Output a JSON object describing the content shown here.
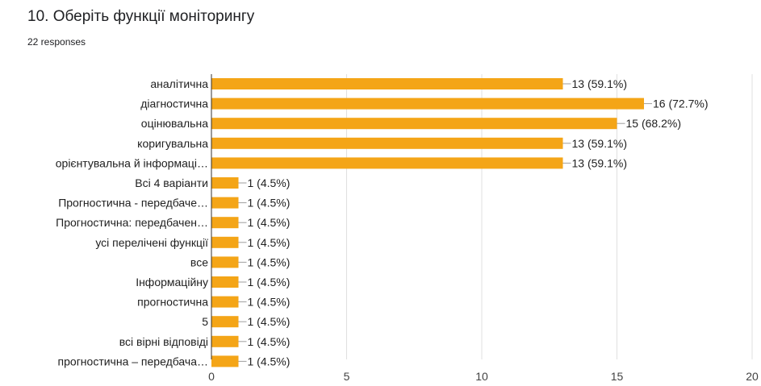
{
  "question": {
    "title": "10. Оберіть  функції моніторингу",
    "responses": "22 responses"
  },
  "colors": {
    "bar": "#f4a517",
    "grid": "#e0e0e0",
    "axis": "#333333",
    "text": "#212121"
  },
  "chart_data": {
    "type": "bar",
    "orientation": "horizontal",
    "categories": [
      "аналітична",
      "діагностична",
      "оцінювальна",
      "коригувальна",
      "орієнтувальна й інформаці…",
      "Всі 4 варіанти",
      "Прогностична - передбаче…",
      "Прогностична: передбачен…",
      "усі перелічені функції",
      "все",
      "Інформаційну",
      "прогностична",
      "5",
      "всі вірні відповіді",
      "прогностична – передбача…"
    ],
    "values": [
      13,
      16,
      15,
      13,
      13,
      1,
      1,
      1,
      1,
      1,
      1,
      1,
      1,
      1,
      1
    ],
    "value_labels": [
      "13 (59.1%)",
      "16 (72.7%)",
      "15 (68.2%)",
      "13 (59.1%)",
      "13 (59.1%)",
      "1 (4.5%)",
      "1 (4.5%)",
      "1 (4.5%)",
      "1 (4.5%)",
      "1 (4.5%)",
      "1 (4.5%)",
      "1 (4.5%)",
      "1 (4.5%)",
      "1 (4.5%)",
      "1 (4.5%)"
    ],
    "xlim": [
      0,
      20
    ],
    "xticks": [
      0,
      5,
      10,
      15,
      20
    ],
    "grid": true,
    "legend": "none",
    "title": "10. Оберіть  функції моніторингу",
    "xlabel": "",
    "ylabel": ""
  }
}
